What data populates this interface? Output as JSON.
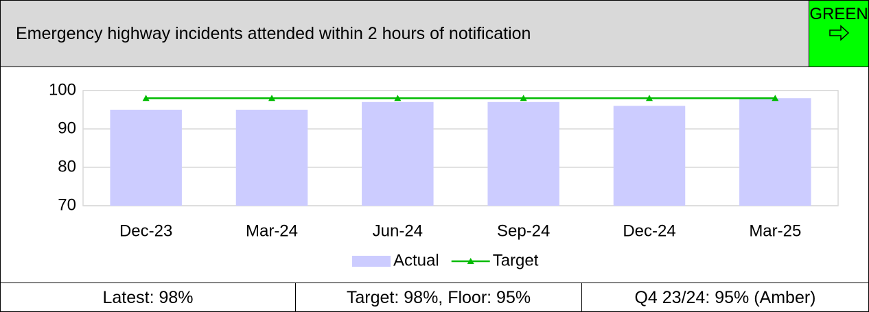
{
  "header": {
    "title": "Emergency highway incidents attended within 2 hours of notification",
    "status": "GREEN"
  },
  "chart_data": {
    "type": "bar",
    "categories": [
      "Dec-23",
      "Mar-24",
      "Jun-24",
      "Sep-24",
      "Dec-24",
      "Mar-25"
    ],
    "series": [
      {
        "name": "Actual",
        "type": "bar",
        "color": "#ccccff",
        "values": [
          95,
          95,
          97,
          97,
          96,
          98
        ]
      },
      {
        "name": "Target",
        "type": "line",
        "color": "#00bb00",
        "values": [
          98,
          98,
          98,
          98,
          98,
          98
        ]
      }
    ],
    "ylim": [
      70,
      100
    ],
    "yticks": [
      70,
      80,
      90,
      100
    ],
    "grid": true,
    "legend": "bottom"
  },
  "footer": [
    "Latest: 98%",
    "Target: 98%, Floor: 95%",
    "Q4 23/24: 95% (Amber)"
  ]
}
